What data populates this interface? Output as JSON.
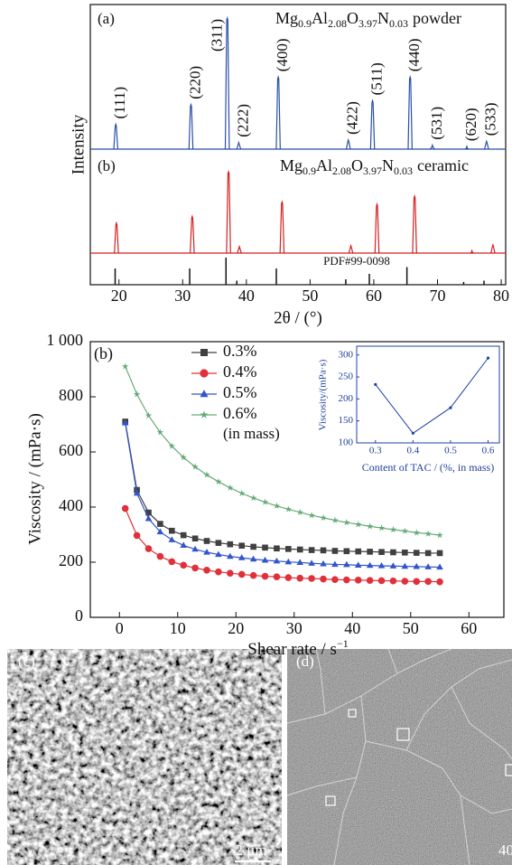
{
  "chart_data": [
    {
      "type": "peaks",
      "panel_label": "(a)",
      "ylabel": "Intensity",
      "xlabel": "2θ / (°)",
      "xlim": [
        15.5,
        80.7
      ],
      "xticks": [
        20,
        30,
        40,
        50,
        60,
        70,
        80
      ],
      "annotation": "PDF#99-0098",
      "series": [
        {
          "panel_label": "(a)",
          "label_formula": [
            "Mg",
            "0.9",
            "Al",
            "2.08",
            "O",
            "3.97",
            "N",
            "0.03"
          ],
          "label_suffix": "powder",
          "color": "#2a4fa8",
          "positions": [
            19.5,
            31.3,
            37.0,
            38.8,
            45.0,
            56.0,
            59.8,
            65.7,
            69.2,
            74.6,
            77.7
          ],
          "intensities": [
            19,
            34,
            100,
            5,
            55,
            7,
            37,
            55,
            3,
            2,
            6
          ],
          "peak_labels": [
            "(111)",
            "(220)",
            "(311)",
            "(222)",
            "(400)",
            "(422)",
            "(511)",
            "(440)",
            "(531)",
            "(620)",
            "(533)"
          ]
        },
        {
          "panel_label": "(b)",
          "label_formula": [
            "Mg",
            "0.9",
            "Al",
            "2.08",
            "O",
            "3.97",
            "N",
            "0.03"
          ],
          "label_suffix": "ceramic",
          "color": "#d42020",
          "positions": [
            19.6,
            31.5,
            37.2,
            38.9,
            45.6,
            56.4,
            60.5,
            66.4,
            75.4,
            78.7
          ],
          "intensities": [
            37,
            45,
            100,
            8,
            63,
            9,
            60,
            70,
            3,
            10
          ]
        },
        {
          "color": "#111111",
          "positions": [
            19.4,
            31.1,
            36.8,
            38.5,
            44.7,
            55.6,
            59.3,
            65.2,
            74.1,
            77.3
          ],
          "intensities": [
            60,
            60,
            100,
            15,
            60,
            20,
            40,
            65,
            10,
            15
          ]
        }
      ]
    },
    {
      "type": "line",
      "panel_label": "(b)",
      "ylabel": "Viscosity / (mPa·s)",
      "xlabel": "Shear rate / s",
      "xlabel_sup": "−1",
      "xlim": [
        -5,
        66
      ],
      "xticks": [
        0,
        10,
        20,
        30,
        40,
        50,
        60
      ],
      "ylim": [
        0,
        1000
      ],
      "yticks": [
        0,
        200,
        400,
        600,
        800,
        {
          "value": 1000,
          "label": "1 000"
        }
      ],
      "legend_note": "(in mass)",
      "x": [
        1,
        3,
        5,
        7,
        9,
        11,
        13,
        15,
        17,
        19,
        21,
        23,
        25,
        27,
        29,
        31,
        33,
        35,
        37,
        39,
        41,
        43,
        45,
        47,
        49,
        51,
        53,
        55
      ],
      "series": [
        {
          "name": "0.3%",
          "color": "#404040",
          "marker": "square",
          "values": [
            710,
            462,
            380,
            339,
            314,
            298,
            286,
            277,
            270,
            265,
            260,
            256,
            253,
            250,
            248,
            246,
            244,
            243,
            241,
            240,
            239,
            238,
            237,
            236,
            235,
            234,
            233,
            233
          ]
        },
        {
          "name": "0.4%",
          "color": "#e0303a",
          "marker": "circle",
          "values": [
            395,
            297,
            249,
            221,
            202,
            189,
            179,
            171,
            165,
            160,
            156,
            152,
            149,
            147,
            144,
            142,
            141,
            139,
            137,
            136,
            135,
            134,
            133,
            132,
            131,
            130,
            130,
            129
          ]
        },
        {
          "name": "0.5%",
          "color": "#3355cc",
          "marker": "triangle",
          "values": [
            705,
            450,
            358,
            310,
            281,
            261,
            247,
            236,
            228,
            221,
            216,
            211,
            207,
            204,
            201,
            199,
            196,
            194,
            192,
            191,
            189,
            188,
            187,
            186,
            185,
            184,
            183,
            182
          ]
        },
        {
          "name": "0.6%",
          "color": "#66aa77",
          "marker": "star",
          "values": [
            910,
            809,
            732,
            671,
            621,
            580,
            546,
            517,
            492,
            470,
            450,
            433,
            418,
            404,
            392,
            381,
            370,
            361,
            352,
            344,
            337,
            330,
            324,
            318,
            313,
            307,
            303,
            298
          ]
        }
      ]
    },
    {
      "type": "line",
      "ylabel": "Viscosity/(mPa·s)",
      "xlabel": "Content of TAC / (%, in mass)",
      "xlim": [
        0.25,
        0.63
      ],
      "xticks": [
        0.3,
        0.4,
        0.5,
        0.6
      ],
      "ylim": [
        100,
        320
      ],
      "yticks": [
        100,
        150,
        200,
        250,
        300
      ],
      "x": [
        0.3,
        0.4,
        0.5,
        0.6
      ],
      "series": [
        {
          "color": "#2040a0",
          "marker": "dot",
          "values": [
            233,
            122,
            180,
            293
          ]
        }
      ]
    }
  ],
  "images": [
    {
      "label": "(c)",
      "scale_bar": "2 μm"
    },
    {
      "label": "(d)",
      "scale_bar": "40"
    }
  ]
}
